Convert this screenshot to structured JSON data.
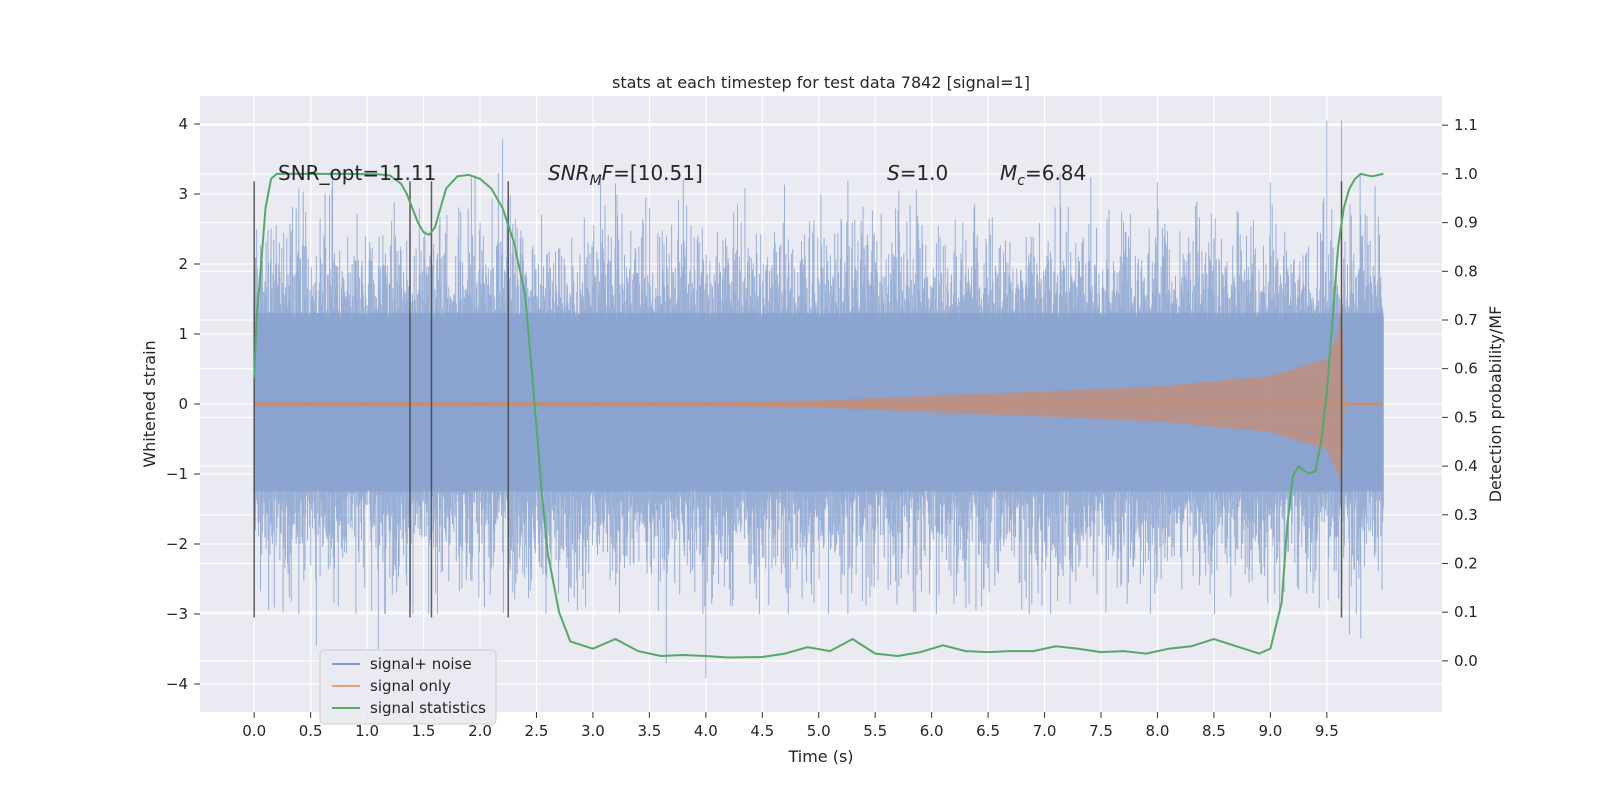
{
  "chart_data": {
    "type": "line",
    "title": "stats at each timestep for test data 7842 [signal=1]",
    "xlabel": "Time (s)",
    "ylabel": "Whitened strain",
    "y2label": "Detection probability/MF",
    "xlim": [
      -0.48,
      10.52
    ],
    "ylim": [
      -4.4,
      4.4
    ],
    "y2lim": [
      -0.105,
      1.16
    ],
    "x_ticks": [
      "0.0",
      "0.5",
      "1.0",
      "1.5",
      "2.0",
      "2.5",
      "3.0",
      "3.5",
      "4.0",
      "4.5",
      "5.0",
      "5.5",
      "6.0",
      "6.5",
      "7.0",
      "7.5",
      "8.0",
      "8.5",
      "9.0",
      "9.5"
    ],
    "y_ticks": [
      "4",
      "3",
      "2",
      "1",
      "0",
      "−1",
      "−2",
      "−3",
      "−4"
    ],
    "y2_ticks": [
      "1.1",
      "1.0",
      "0.9",
      "0.8",
      "0.7",
      "0.6",
      "0.5",
      "0.4",
      "0.3",
      "0.2",
      "0.1",
      "0.0"
    ],
    "grid": true,
    "legend_position": "lower-left",
    "annotations": [
      {
        "key": "snr_opt",
        "text": "SNR_opt=11.11"
      },
      {
        "key": "snr_mf",
        "prefix": "SNR",
        "sub": "M",
        "suffix": "F=[10.51]"
      },
      {
        "key": "s",
        "prefix": "S",
        "suffix": "=1.0"
      },
      {
        "key": "mc",
        "prefix": "M",
        "sub": "c",
        "suffix": "=6.84"
      }
    ],
    "series": [
      {
        "name": "signal+ noise",
        "color": "#7f9bcb",
        "x_range": [
          0.0,
          10.0
        ],
        "dense_band": [
          -1.25,
          1.3
        ],
        "envelope_outer": [
          -3.0,
          3.3
        ],
        "notable_peaks": [
          {
            "x": 2.2,
            "y": 3.78
          },
          {
            "x": 9.5,
            "y": 4.05
          },
          {
            "x": 9.63,
            "y": 4.05
          },
          {
            "x": 3.2,
            "y": 3.15
          },
          {
            "x": 3.8,
            "y": 3.2
          },
          {
            "x": 4.0,
            "y": -3.92
          },
          {
            "x": 3.65,
            "y": -3.7
          },
          {
            "x": 0.55,
            "y": -3.45
          },
          {
            "x": 1.1,
            "y": -3.5
          },
          {
            "x": 9.7,
            "y": -3.3
          },
          {
            "x": 9.8,
            "y": -3.35
          }
        ]
      },
      {
        "name": "signal only",
        "color": "#dd8452",
        "x_range": [
          0.0,
          10.0
        ],
        "amplitude_points": [
          [
            0.0,
            0.03
          ],
          [
            4.0,
            0.03
          ],
          [
            5.0,
            0.05
          ],
          [
            6.0,
            0.12
          ],
          [
            7.0,
            0.18
          ],
          [
            8.0,
            0.25
          ],
          [
            9.0,
            0.4
          ],
          [
            9.5,
            0.65
          ],
          [
            9.6,
            1.0
          ],
          [
            9.63,
            1.55
          ],
          [
            9.66,
            0.02
          ],
          [
            10.0,
            0.02
          ]
        ]
      },
      {
        "name": "signal statistics",
        "color": "#55a868",
        "axis": "right",
        "x": [
          0.0,
          0.02,
          0.05,
          0.1,
          0.15,
          0.2,
          0.3,
          0.5,
          0.8,
          1.1,
          1.2,
          1.3,
          1.35,
          1.4,
          1.45,
          1.5,
          1.55,
          1.6,
          1.65,
          1.7,
          1.8,
          1.9,
          2.0,
          2.1,
          2.2,
          2.3,
          2.4,
          2.45,
          2.5,
          2.55,
          2.6,
          2.7,
          2.8,
          3.0,
          3.2,
          3.4,
          3.6,
          3.8,
          4.0,
          4.2,
          4.5,
          4.7,
          4.9,
          5.1,
          5.3,
          5.5,
          5.7,
          5.9,
          6.1,
          6.3,
          6.5,
          6.7,
          6.9,
          7.1,
          7.3,
          7.5,
          7.7,
          7.9,
          8.1,
          8.3,
          8.5,
          8.7,
          8.9,
          9.0,
          9.1,
          9.15,
          9.2,
          9.25,
          9.3,
          9.35,
          9.4,
          9.45,
          9.5,
          9.55,
          9.6,
          9.65,
          9.7,
          9.75,
          9.8,
          9.9,
          10.0
        ],
        "values": [
          0.58,
          0.7,
          0.78,
          0.93,
          0.99,
          1.0,
          1.0,
          1.0,
          1.0,
          0.999,
          0.997,
          0.98,
          0.96,
          0.93,
          0.9,
          0.88,
          0.875,
          0.89,
          0.93,
          0.97,
          0.995,
          0.998,
          0.99,
          0.97,
          0.93,
          0.86,
          0.75,
          0.62,
          0.48,
          0.34,
          0.22,
          0.1,
          0.04,
          0.025,
          0.045,
          0.02,
          0.01,
          0.012,
          0.01,
          0.007,
          0.008,
          0.015,
          0.028,
          0.02,
          0.045,
          0.015,
          0.01,
          0.018,
          0.032,
          0.02,
          0.018,
          0.02,
          0.02,
          0.03,
          0.025,
          0.018,
          0.02,
          0.015,
          0.025,
          0.03,
          0.045,
          0.03,
          0.015,
          0.025,
          0.12,
          0.28,
          0.38,
          0.4,
          0.39,
          0.385,
          0.39,
          0.45,
          0.55,
          0.7,
          0.85,
          0.93,
          0.97,
          0.99,
          1.0,
          0.995,
          1.0
        ]
      }
    ],
    "vertical_markers": [
      0.0,
      1.38,
      1.57,
      2.25,
      9.63
    ]
  }
}
